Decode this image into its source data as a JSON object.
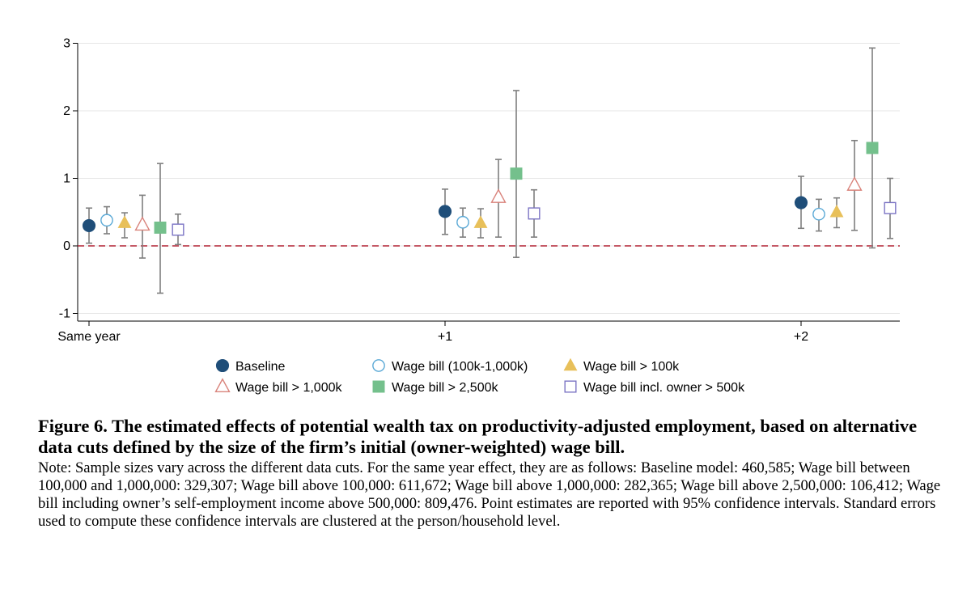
{
  "chart_data": {
    "type": "scatter",
    "subtype": "point-estimates-with-95pct-ci",
    "categories": [
      "Same year",
      "+1",
      "+2"
    ],
    "ylim": [
      -1.1,
      3.05
    ],
    "yticks": [
      -1,
      0,
      1,
      2,
      3
    ],
    "ytick_labels": [
      "-1",
      "0",
      "1",
      "2",
      "3"
    ],
    "grid": true,
    "reference_line": {
      "y": 0,
      "style": "dashed",
      "color": "#b22234"
    },
    "legend_position": "bottom",
    "series": [
      {
        "name": "Baseline",
        "marker": "circle-filled",
        "color": "#1f4e79",
        "values": [
          0.3,
          0.51,
          0.64
        ],
        "ci_low": [
          0.04,
          0.17,
          0.26
        ],
        "ci_high": [
          0.56,
          0.84,
          1.03
        ]
      },
      {
        "name": "Wage bill (100k-1,000k)",
        "marker": "circle-open",
        "color": "#5aa9d6",
        "values": [
          0.38,
          0.35,
          0.47
        ],
        "ci_low": [
          0.18,
          0.13,
          0.22
        ],
        "ci_high": [
          0.58,
          0.56,
          0.69
        ]
      },
      {
        "name": "Wage bill > 100k",
        "marker": "triangle-filled",
        "color": "#e8c05a",
        "values": [
          0.34,
          0.34,
          0.5
        ],
        "ci_low": [
          0.12,
          0.12,
          0.27
        ],
        "ci_high": [
          0.49,
          0.55,
          0.71
        ]
      },
      {
        "name": "Wage bill > 1,000k",
        "marker": "triangle-open",
        "color": "#d9837b",
        "values": [
          0.31,
          0.72,
          0.9
        ],
        "ci_low": [
          -0.18,
          0.13,
          0.23
        ],
        "ci_high": [
          0.75,
          1.28,
          1.56
        ]
      },
      {
        "name": "Wage bill > 2,500k",
        "marker": "square-filled",
        "color": "#74c08c",
        "values": [
          0.27,
          1.07,
          1.45
        ],
        "ci_low": [
          -0.7,
          -0.17,
          -0.03
        ],
        "ci_high": [
          1.22,
          2.3,
          2.93
        ]
      },
      {
        "name": "Wage bill incl. owner > 500k",
        "marker": "square-open",
        "color": "#7b74c4",
        "values": [
          0.24,
          0.48,
          0.56
        ],
        "ci_low": [
          0.02,
          0.13,
          0.11
        ],
        "ci_high": [
          0.47,
          0.83,
          1.0
        ]
      }
    ],
    "legend_order": [
      0,
      1,
      2,
      3,
      4,
      5
    ]
  },
  "caption": {
    "title": "Figure 6. The estimated effects of potential wealth tax on productivity-adjusted employment, based on alternative data cuts defined by the size of the firm’s initial (owner-weighted) wage bill.",
    "note": "Note: Sample sizes vary across the different data cuts. For the same year effect, they are as follows: Baseline model: 460,585; Wage bill between 100,000 and 1,000,000: 329,307; Wage bill above 100,000: 611,672; Wage bill above 1,000,000: 282,365; Wage bill above 2,500,000: 106,412; Wage bill including owner’s self-employment income above 500,000: 809,476. Point estimates are reported with 95% confidence intervals. Standard errors used to compute these confidence intervals are clustered at the person/household level."
  }
}
